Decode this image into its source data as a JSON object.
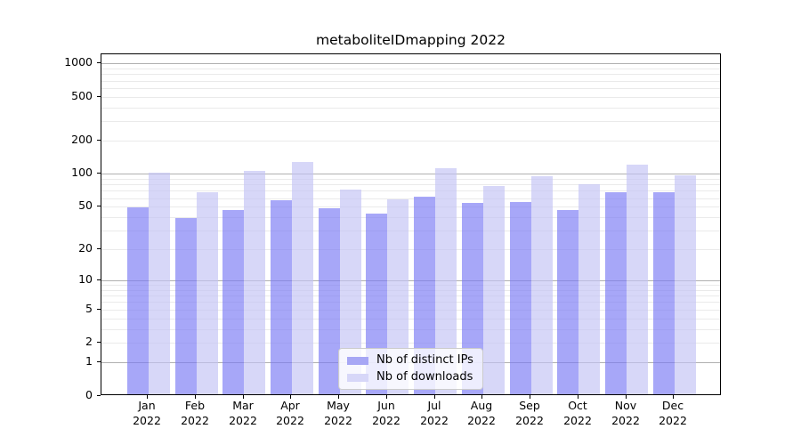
{
  "title": "metaboliteIDmapping 2022",
  "chart_data": {
    "type": "bar",
    "title": "metaboliteIDmapping 2022",
    "categories": [
      "Jan 2022",
      "Feb 2022",
      "Mar 2022",
      "Apr 2022",
      "May 2022",
      "Jun 2022",
      "Jul 2022",
      "Aug 2022",
      "Sep 2022",
      "Oct 2022",
      "Nov 2022",
      "Dec 2022"
    ],
    "series": [
      {
        "name": "Nb of distinct IPs",
        "color": "#a7a7f5",
        "fill_rgba": "rgba(122,122,244,0.66)",
        "values": [
          48,
          38,
          45,
          56,
          47,
          42,
          60,
          53,
          54,
          45,
          66,
          66
        ]
      },
      {
        "name": "Nb of downloads",
        "color": "#d7d7f8",
        "fill_rgba": "rgba(194,194,245,0.66)",
        "values": [
          100,
          66,
          104,
          124,
          70,
          57,
          110,
          76,
          92,
          78,
          117,
          94
        ]
      }
    ],
    "xlabel": "",
    "ylabel": "",
    "y_scale": "log10(value+1)",
    "ylim": [
      0,
      1200
    ],
    "y_ticks": [
      0,
      1,
      2,
      5,
      10,
      20,
      50,
      100,
      200,
      500,
      1000
    ],
    "y_major_gridlines": [
      1,
      10,
      100,
      1000
    ],
    "y_minor_gridlines": [
      2,
      3,
      4,
      5,
      6,
      7,
      8,
      9,
      20,
      30,
      40,
      50,
      60,
      70,
      80,
      90,
      200,
      300,
      400,
      500,
      600,
      700,
      800,
      900
    ],
    "grid": true,
    "legend": {
      "position": "lower center",
      "entries": [
        "Nb of distinct IPs",
        "Nb of downloads"
      ]
    }
  },
  "colors": {
    "background": "#ffffff",
    "axis": "#000000",
    "major_gridline": "#b0b0b0",
    "minor_gridline": "#eaeaea",
    "bar_distinct_ips": "#a7a7f5",
    "bar_downloads": "#d7d7f8",
    "legend_border": "#cccccc"
  }
}
